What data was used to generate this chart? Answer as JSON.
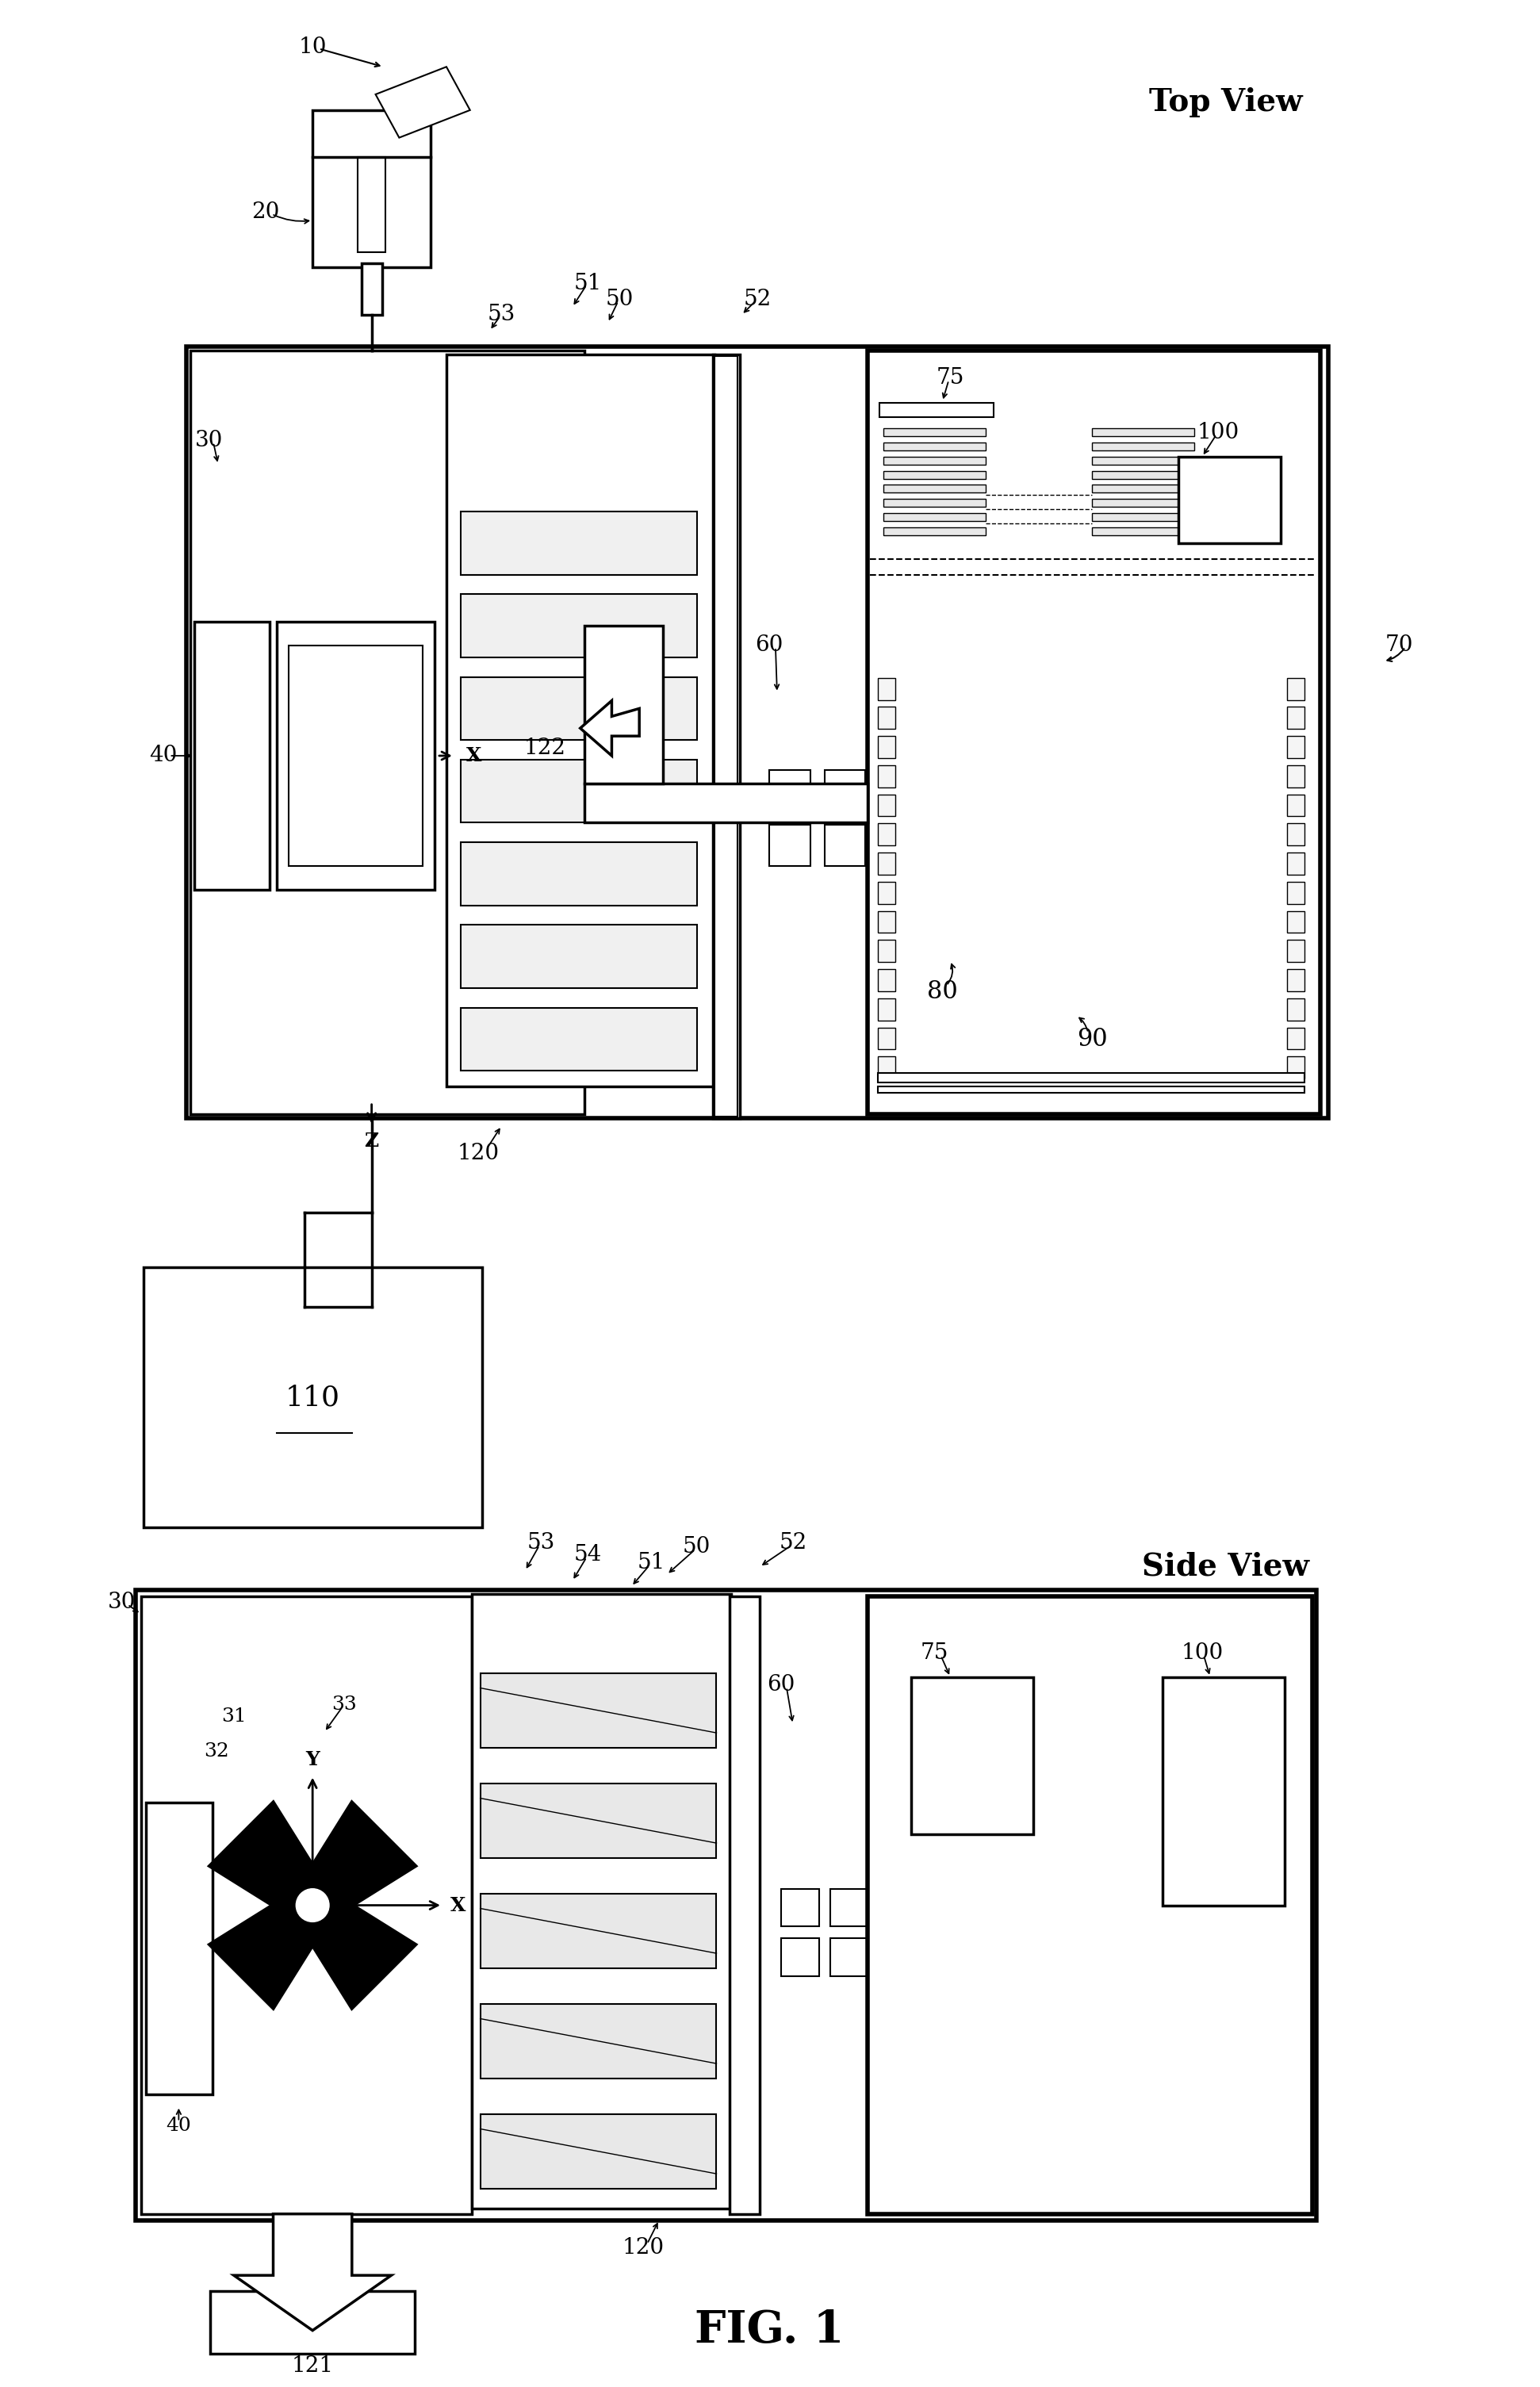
{
  "bg_color": "#ffffff",
  "line_color": "#000000",
  "fig_width": 19.42,
  "fig_height": 30.1,
  "title": "FIG. 1",
  "top_view_label": "Top View",
  "side_view_label": "Side View"
}
